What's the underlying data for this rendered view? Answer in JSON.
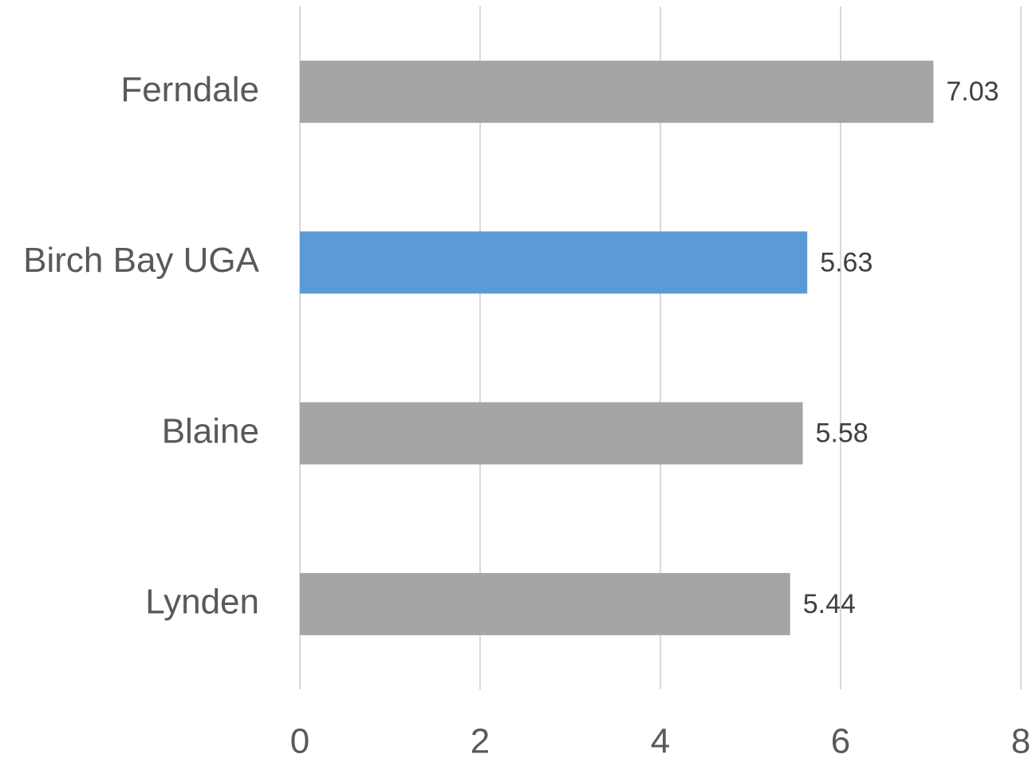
{
  "chart_data": {
    "type": "bar",
    "categories": [
      "Ferndale",
      "Birch Bay UGA",
      "Blaine",
      "Lynden"
    ],
    "values": [
      7.03,
      5.63,
      5.58,
      5.44
    ],
    "colors": [
      "#a5a5a5",
      "#5b9bd5",
      "#a5a5a5",
      "#a5a5a5"
    ],
    "xlim": [
      0,
      8
    ],
    "xticks": [
      0,
      2,
      4,
      6,
      8
    ],
    "grid": true
  }
}
